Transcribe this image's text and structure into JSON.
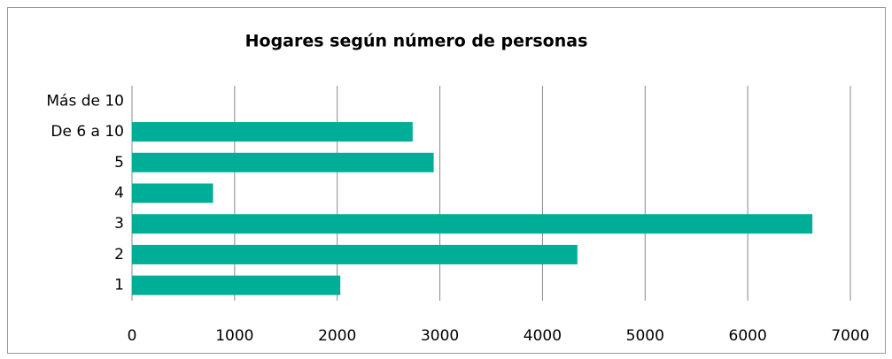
{
  "chart_data": {
    "type": "hbar",
    "title": "Hogares según número de personas",
    "categories": [
      "1",
      "2",
      "3",
      "4",
      "5",
      "De 6 a 10",
      "Más de 10"
    ],
    "values": [
      2030,
      4340,
      6630,
      790,
      2940,
      2735,
      0
    ],
    "color": "#00ae98",
    "xlim": [
      0,
      7000
    ],
    "xticks": [
      0,
      1000,
      2000,
      3000,
      4000,
      5000,
      6000,
      7000
    ],
    "grid": true
  }
}
